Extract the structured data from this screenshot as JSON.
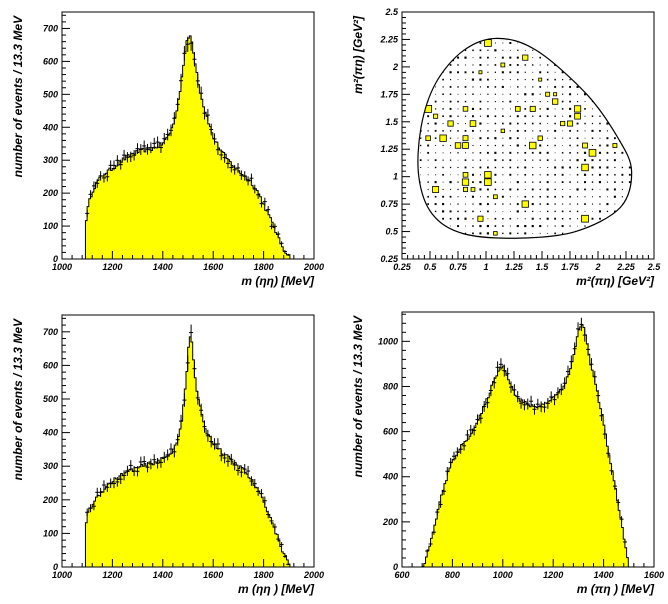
{
  "chart_data": [
    {
      "id": "a",
      "type": "histogram",
      "xlabel": "m (ηη)  [MeV]",
      "ylabel": "number of events  /  13.3 MeV",
      "xlim": [
        1000,
        2000
      ],
      "ylim": [
        0,
        750
      ],
      "xticks": [
        1000,
        1200,
        1400,
        1600,
        1800,
        2000
      ],
      "yticks": [
        0,
        100,
        200,
        300,
        400,
        500,
        600,
        700
      ],
      "fill_color": "#ffff00",
      "profile": [
        [
          1093,
          0
        ],
        [
          1095,
          115
        ],
        [
          1105,
          165
        ],
        [
          1120,
          205
        ],
        [
          1140,
          235
        ],
        [
          1170,
          260
        ],
        [
          1200,
          275
        ],
        [
          1240,
          300
        ],
        [
          1280,
          320
        ],
        [
          1320,
          330
        ],
        [
          1360,
          335
        ],
        [
          1400,
          350
        ],
        [
          1430,
          385
        ],
        [
          1450,
          430
        ],
        [
          1470,
          520
        ],
        [
          1485,
          610
        ],
        [
          1497,
          665
        ],
        [
          1507,
          680
        ],
        [
          1517,
          655
        ],
        [
          1530,
          590
        ],
        [
          1545,
          520
        ],
        [
          1560,
          470
        ],
        [
          1580,
          420
        ],
        [
          1600,
          370
        ],
        [
          1630,
          330
        ],
        [
          1660,
          300
        ],
        [
          1690,
          275
        ],
        [
          1720,
          255
        ],
        [
          1750,
          235
        ],
        [
          1780,
          200
        ],
        [
          1810,
          150
        ],
        [
          1840,
          100
        ],
        [
          1860,
          60
        ],
        [
          1880,
          30
        ],
        [
          1900,
          10
        ],
        [
          1910,
          0
        ]
      ],
      "points_x_range": [
        1100,
        1900
      ],
      "points_jitter": 16
    },
    {
      "id": "b",
      "type": "dalitz",
      "xlabel": "m²(πη)  [GeV²]",
      "ylabel": "m²(πη)  [GeV²]",
      "xlim": [
        0.25,
        2.5
      ],
      "ylim": [
        0.25,
        2.5
      ],
      "xticks": [
        "0.25",
        "0.5",
        "0.75",
        "1",
        "1.25",
        "1.5",
        "1.75",
        "2",
        "2.25",
        "2.5"
      ],
      "yticks": [
        "0.25",
        "0.5",
        "0.75",
        "1",
        "1.25",
        "1.5",
        "1.75",
        "2",
        "2.25",
        "2.5"
      ],
      "boundary": [
        [
          0.4,
          1.0
        ],
        [
          0.42,
          1.45
        ],
        [
          0.55,
          1.85
        ],
        [
          0.8,
          2.15
        ],
        [
          1.1,
          2.26
        ],
        [
          1.45,
          2.15
        ],
        [
          1.9,
          1.75
        ],
        [
          2.18,
          1.35
        ],
        [
          2.3,
          1.05
        ],
        [
          2.2,
          0.72
        ],
        [
          1.8,
          0.5
        ],
        [
          1.3,
          0.44
        ],
        [
          0.8,
          0.48
        ],
        [
          0.52,
          0.66
        ]
      ],
      "box_color": "#ffff00"
    },
    {
      "id": "c",
      "type": "histogram",
      "xlabel": "m (ηη )  [MeV]",
      "ylabel": "number of events  /  13.3 MeV",
      "xlim": [
        1000,
        2000
      ],
      "ylim": [
        0,
        750
      ],
      "xticks": [
        1000,
        1200,
        1400,
        1600,
        1800,
        2000
      ],
      "yticks": [
        0,
        100,
        200,
        300,
        400,
        500,
        600,
        700
      ],
      "fill_color": "#ffff00",
      "profile": [
        [
          1093,
          0
        ],
        [
          1095,
          130
        ],
        [
          1105,
          165
        ],
        [
          1120,
          185
        ],
        [
          1140,
          210
        ],
        [
          1170,
          235
        ],
        [
          1200,
          255
        ],
        [
          1240,
          275
        ],
        [
          1280,
          290
        ],
        [
          1320,
          300
        ],
        [
          1360,
          310
        ],
        [
          1400,
          320
        ],
        [
          1430,
          335
        ],
        [
          1460,
          380
        ],
        [
          1480,
          460
        ],
        [
          1495,
          580
        ],
        [
          1505,
          680
        ],
        [
          1513,
          690
        ],
        [
          1520,
          630
        ],
        [
          1535,
          520
        ],
        [
          1555,
          450
        ],
        [
          1575,
          400
        ],
        [
          1600,
          370
        ],
        [
          1630,
          345
        ],
        [
          1660,
          325
        ],
        [
          1690,
          305
        ],
        [
          1720,
          290
        ],
        [
          1750,
          260
        ],
        [
          1780,
          225
        ],
        [
          1810,
          180
        ],
        [
          1840,
          120
        ],
        [
          1860,
          80
        ],
        [
          1880,
          40
        ],
        [
          1900,
          10
        ],
        [
          1910,
          0
        ]
      ],
      "points_x_range": [
        1100,
        1900
      ],
      "points_jitter": 16
    },
    {
      "id": "d",
      "type": "histogram",
      "xlabel": "m (πη )  [MeV]",
      "ylabel": "number of events  /  13.3 MeV",
      "xlim": [
        600,
        1600
      ],
      "ylim": [
        0,
        1130
      ],
      "xticks": [
        600,
        800,
        1000,
        1200,
        1400,
        1600
      ],
      "yticks": [
        0,
        200,
        400,
        600,
        800,
        1000
      ],
      "fill_color": "#ffff00",
      "profile": [
        [
          680,
          0
        ],
        [
          690,
          20
        ],
        [
          710,
          90
        ],
        [
          730,
          190
        ],
        [
          760,
          330
        ],
        [
          790,
          440
        ],
        [
          820,
          510
        ],
        [
          860,
          570
        ],
        [
          900,
          640
        ],
        [
          930,
          720
        ],
        [
          960,
          810
        ],
        [
          985,
          880
        ],
        [
          1000,
          890
        ],
        [
          1015,
          860
        ],
        [
          1035,
          800
        ],
        [
          1060,
          745
        ],
        [
          1090,
          725
        ],
        [
          1120,
          710
        ],
        [
          1150,
          715
        ],
        [
          1180,
          735
        ],
        [
          1210,
          760
        ],
        [
          1240,
          800
        ],
        [
          1265,
          860
        ],
        [
          1285,
          960
        ],
        [
          1300,
          1050
        ],
        [
          1315,
          1070
        ],
        [
          1325,
          1050
        ],
        [
          1345,
          920
        ],
        [
          1370,
          800
        ],
        [
          1400,
          640
        ],
        [
          1425,
          470
        ],
        [
          1450,
          330
        ],
        [
          1470,
          200
        ],
        [
          1485,
          100
        ],
        [
          1495,
          40
        ],
        [
          1500,
          0
        ]
      ],
      "points_x_range": [
        700,
        1490
      ],
      "points_jitter": 22
    }
  ]
}
